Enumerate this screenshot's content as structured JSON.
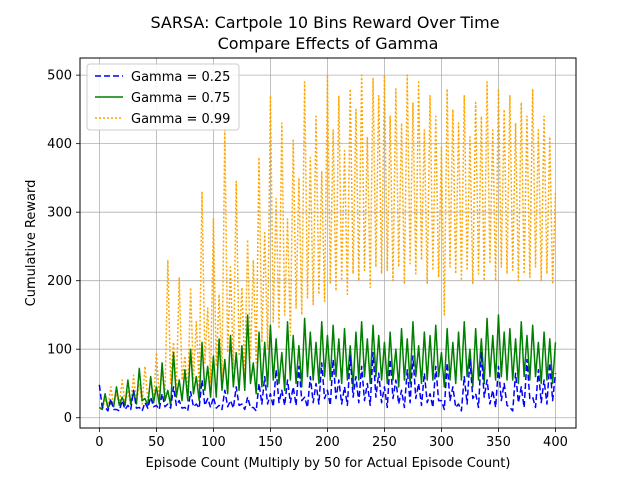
{
  "chart_data": {
    "type": "line",
    "title": "SARSA: Cartpole 10 Bins Reward Over Time",
    "subtitle": "Compare Effects of Gamma",
    "xlabel": "Episode Count (Multiply by 50 for Actual Episode Count)",
    "ylabel": "Cumulative Reward",
    "xlim": [
      -17,
      418
    ],
    "ylim": [
      -15,
      525
    ],
    "xticks": [
      0,
      50,
      100,
      150,
      200,
      250,
      300,
      350,
      400
    ],
    "yticks": [
      0,
      100,
      200,
      300,
      400,
      500
    ],
    "grid": true,
    "legend_position": "top-left",
    "series": [
      {
        "name": "Gamma = 0.25",
        "color": "#0000ff",
        "style": "dashed",
        "x": [
          0,
          5,
          10,
          15,
          20,
          25,
          30,
          35,
          40,
          45,
          50,
          55,
          60,
          65,
          70,
          75,
          80,
          85,
          90,
          95,
          100,
          105,
          110,
          115,
          120,
          125,
          130,
          135,
          140,
          145,
          150,
          155,
          160,
          165,
          170,
          175,
          180,
          185,
          190,
          195,
          200,
          205,
          210,
          215,
          220,
          225,
          230,
          235,
          240,
          245,
          250,
          255,
          260,
          265,
          270,
          275,
          280,
          285,
          290,
          295,
          300,
          305,
          310,
          315,
          320,
          325,
          330,
          335,
          340,
          345,
          350,
          355,
          360,
          365,
          370,
          375,
          380,
          385,
          390,
          395,
          400
        ],
        "values": [
          48,
          15,
          28,
          12,
          25,
          18,
          40,
          15,
          22,
          30,
          18,
          35,
          20,
          45,
          25,
          15,
          38,
          20,
          55,
          28,
          30,
          18,
          40,
          25,
          45,
          20,
          30,
          15,
          50,
          60,
          35,
          70,
          40,
          55,
          45,
          75,
          30,
          60,
          50,
          80,
          40,
          85,
          55,
          45,
          90,
          60,
          75,
          50,
          95,
          65,
          45,
          85,
          55,
          40,
          70,
          90,
          50,
          65,
          35,
          75,
          25,
          80,
          45,
          20,
          60,
          85,
          35,
          95,
          55,
          40,
          75,
          50,
          15,
          65,
          45,
          85,
          30,
          70,
          55,
          80,
          65
        ],
        "min_values": [
          15,
          10,
          12,
          10,
          12,
          12,
          14,
          10,
          14,
          16,
          12,
          16,
          14,
          18,
          14,
          10,
          16,
          14,
          18,
          15,
          14,
          12,
          16,
          14,
          18,
          12,
          15,
          10,
          20,
          20,
          16,
          22,
          18,
          22,
          18,
          25,
          15,
          22,
          20,
          28,
          18,
          28,
          20,
          18,
          30,
          22,
          25,
          18,
          30,
          22,
          15,
          28,
          20,
          15,
          22,
          28,
          18,
          22,
          15,
          25,
          12,
          25,
          15,
          10,
          20,
          28,
          15,
          30,
          20,
          15,
          25,
          18,
          10,
          22,
          15,
          28,
          15,
          22,
          20,
          25,
          22
        ]
      },
      {
        "name": "Gamma = 0.75",
        "color": "#008000",
        "style": "solid",
        "x": [
          0,
          5,
          10,
          15,
          20,
          25,
          30,
          35,
          40,
          45,
          50,
          55,
          60,
          65,
          70,
          75,
          80,
          85,
          90,
          95,
          100,
          105,
          110,
          115,
          120,
          125,
          130,
          135,
          140,
          145,
          150,
          155,
          160,
          165,
          170,
          175,
          180,
          185,
          190,
          195,
          200,
          205,
          210,
          215,
          220,
          225,
          230,
          235,
          240,
          245,
          250,
          255,
          260,
          265,
          270,
          275,
          280,
          285,
          290,
          295,
          300,
          305,
          310,
          315,
          320,
          325,
          330,
          335,
          340,
          345,
          350,
          355,
          360,
          365,
          370,
          375,
          380,
          385,
          390,
          395,
          400
        ],
        "values": [
          15,
          35,
          22,
          45,
          30,
          55,
          38,
          72,
          28,
          60,
          45,
          80,
          40,
          95,
          55,
          70,
          100,
          60,
          110,
          75,
          90,
          115,
          85,
          120,
          95,
          105,
          150,
          80,
          125,
          110,
          135,
          115,
          95,
          140,
          120,
          105,
          145,
          125,
          110,
          140,
          120,
          135,
          115,
          130,
          105,
          125,
          140,
          115,
          135,
          120,
          110,
          125,
          100,
          130,
          115,
          140,
          105,
          125,
          120,
          135,
          95,
          130,
          110,
          125,
          140,
          100,
          130,
          115,
          145,
          120,
          150,
          125,
          130,
          115,
          140,
          120,
          135,
          110,
          125,
          115,
          110
        ],
        "min_values": [
          12,
          14,
          16,
          18,
          18,
          20,
          20,
          25,
          18,
          22,
          20,
          25,
          18,
          30,
          25,
          25,
          35,
          25,
          40,
          30,
          30,
          40,
          35,
          45,
          40,
          40,
          50,
          35,
          45,
          45,
          55,
          50,
          40,
          55,
          50,
          45,
          60,
          55,
          50,
          60,
          55,
          60,
          50,
          55,
          45,
          55,
          60,
          50,
          60,
          55,
          50,
          55,
          45,
          55,
          50,
          60,
          50,
          55,
          55,
          60,
          45,
          55,
          50,
          55,
          60,
          45,
          55,
          50,
          60,
          55,
          60,
          55,
          55,
          50,
          60,
          55,
          60,
          50,
          55,
          50,
          55
        ]
      },
      {
        "name": "Gamma = 0.99",
        "color": "#ffa500",
        "style": "dotted",
        "x": [
          0,
          5,
          10,
          15,
          20,
          25,
          30,
          35,
          40,
          45,
          50,
          55,
          60,
          65,
          70,
          75,
          80,
          85,
          90,
          95,
          100,
          105,
          110,
          115,
          120,
          125,
          130,
          135,
          140,
          145,
          150,
          155,
          160,
          165,
          170,
          175,
          180,
          185,
          190,
          195,
          200,
          205,
          210,
          215,
          220,
          225,
          230,
          235,
          240,
          245,
          250,
          255,
          260,
          265,
          270,
          275,
          280,
          285,
          290,
          295,
          300,
          305,
          310,
          315,
          320,
          325,
          330,
          335,
          340,
          345,
          350,
          355,
          360,
          365,
          370,
          375,
          380,
          385,
          390,
          395,
          400
        ],
        "values": [
          15,
          28,
          45,
          35,
          55,
          40,
          62,
          50,
          75,
          58,
          95,
          70,
          230,
          110,
          205,
          90,
          190,
          140,
          330,
          160,
          290,
          180,
          420,
          220,
          345,
          190,
          260,
          230,
          380,
          270,
          470,
          320,
          430,
          290,
          405,
          350,
          490,
          380,
          440,
          360,
          500,
          420,
          470,
          390,
          480,
          450,
          500,
          410,
          495,
          470,
          500,
          440,
          480,
          430,
          500,
          460,
          490,
          420,
          470,
          440,
          395,
          480,
          450,
          430,
          470,
          410,
          460,
          440,
          490,
          420,
          480,
          450,
          470,
          430,
          460,
          440,
          480,
          420,
          440,
          410,
          330
        ],
        "min_values": [
          12,
          15,
          18,
          18,
          20,
          18,
          22,
          20,
          25,
          22,
          30,
          25,
          50,
          40,
          55,
          35,
          55,
          45,
          80,
          50,
          75,
          60,
          95,
          70,
          90,
          65,
          85,
          80,
          110,
          100,
          140,
          130,
          150,
          120,
          160,
          150,
          175,
          165,
          180,
          170,
          195,
          185,
          200,
          180,
          210,
          200,
          215,
          190,
          220,
          210,
          215,
          200,
          220,
          195,
          225,
          210,
          230,
          195,
          215,
          205,
          150,
          220,
          210,
          200,
          215,
          195,
          210,
          200,
          225,
          200,
          220,
          210,
          215,
          200,
          210,
          205,
          220,
          200,
          210,
          195,
          200
        ]
      }
    ]
  }
}
